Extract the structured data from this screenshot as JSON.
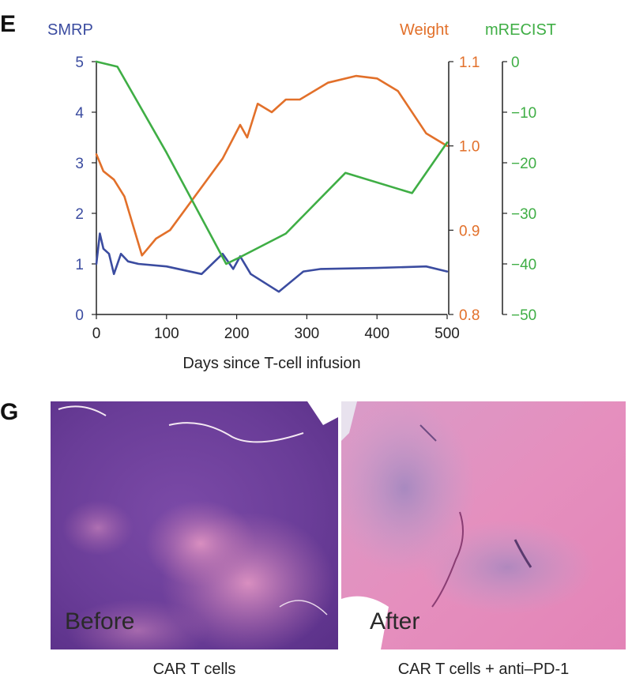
{
  "panel_e": {
    "letter": "E"
  },
  "panel_g": {
    "letter": "G",
    "before": {
      "label": "Before",
      "caption": "CAR T cells"
    },
    "after": {
      "label": "After",
      "caption": "CAR T cells + anti–PD-1"
    }
  },
  "colors": {
    "smrp": "#3b4ca0",
    "weight": "#e2702a",
    "mrecist": "#3fae45"
  },
  "chart_data": {
    "type": "line",
    "xlabel": "Days since T-cell infusion",
    "x_ticks": [
      "0",
      "100",
      "200",
      "300",
      "400",
      "500"
    ],
    "xlim": [
      0,
      500
    ],
    "axes": [
      {
        "id": "smrp",
        "label": "SMRP",
        "ylim": [
          0,
          5
        ],
        "ticks": [
          "0",
          "1",
          "2",
          "3",
          "4",
          "5"
        ]
      },
      {
        "id": "weight",
        "label": "Weight",
        "ylim": [
          0.8,
          1.1
        ],
        "ticks": [
          "0.8",
          "0.9",
          "1.0",
          "1.1"
        ]
      },
      {
        "id": "mrecist",
        "label": "mRECIST",
        "ylim": [
          -50,
          0
        ],
        "ticks": [
          "−50",
          "−40",
          "−30",
          "−20",
          "−10",
          "0"
        ]
      }
    ],
    "series": [
      {
        "name": "SMRP",
        "axis": "smrp",
        "x": [
          0,
          5,
          10,
          18,
          25,
          35,
          45,
          60,
          100,
          150,
          180,
          195,
          205,
          220,
          260,
          295,
          320,
          400,
          470,
          500
        ],
        "y": [
          1.0,
          1.6,
          1.3,
          1.2,
          0.8,
          1.2,
          1.05,
          1.0,
          0.95,
          0.8,
          1.2,
          0.9,
          1.15,
          0.8,
          0.45,
          0.85,
          0.9,
          0.92,
          0.95,
          0.85
        ]
      },
      {
        "name": "Weight",
        "axis": "weight",
        "x": [
          0,
          10,
          25,
          40,
          65,
          85,
          105,
          180,
          205,
          215,
          230,
          250,
          270,
          290,
          330,
          370,
          400,
          430,
          470,
          500
        ],
        "y": [
          0.99,
          0.97,
          0.96,
          0.94,
          0.87,
          0.89,
          0.9,
          0.985,
          1.025,
          1.01,
          1.05,
          1.04,
          1.055,
          1.055,
          1.075,
          1.083,
          1.08,
          1.065,
          1.015,
          1.0
        ]
      },
      {
        "name": "mRECIST",
        "axis": "mrecist",
        "x": [
          0,
          30,
          100,
          185,
          200,
          270,
          355,
          450,
          500
        ],
        "y": [
          0,
          -1,
          -18,
          -40,
          -39,
          -34,
          -22,
          -26,
          -16
        ]
      }
    ]
  }
}
